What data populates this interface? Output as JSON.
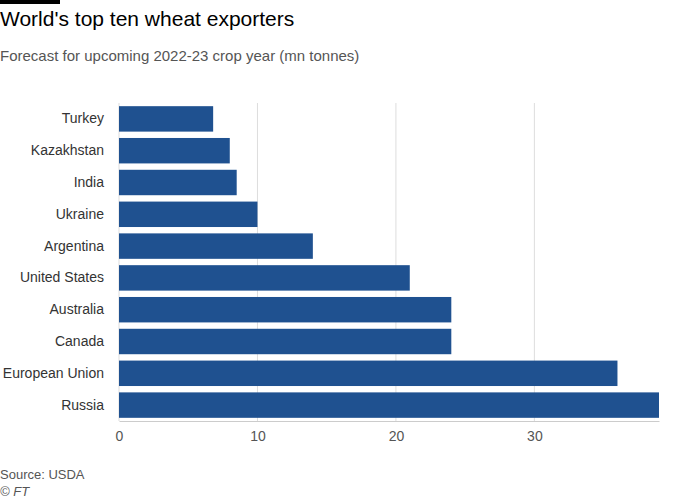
{
  "chart_data": {
    "type": "bar",
    "orientation": "horizontal",
    "title": "World's top ten wheat exporters",
    "subtitle": "Forecast for upcoming 2022-23 crop year (mn tonnes)",
    "categories": [
      "Turkey",
      "Kazakhstan",
      "India",
      "Ukraine",
      "Argentina",
      "United States",
      "Australia",
      "Canada",
      "European Union",
      "Russia"
    ],
    "values": [
      6.8,
      8,
      8.5,
      10,
      14,
      21,
      24,
      24,
      36,
      39
    ],
    "color": "#1f5190",
    "xlim": [
      0,
      39
    ],
    "xticks": [
      0,
      10,
      20,
      30
    ],
    "grid": true,
    "source": "Source: USDA",
    "credit": "© FT"
  }
}
